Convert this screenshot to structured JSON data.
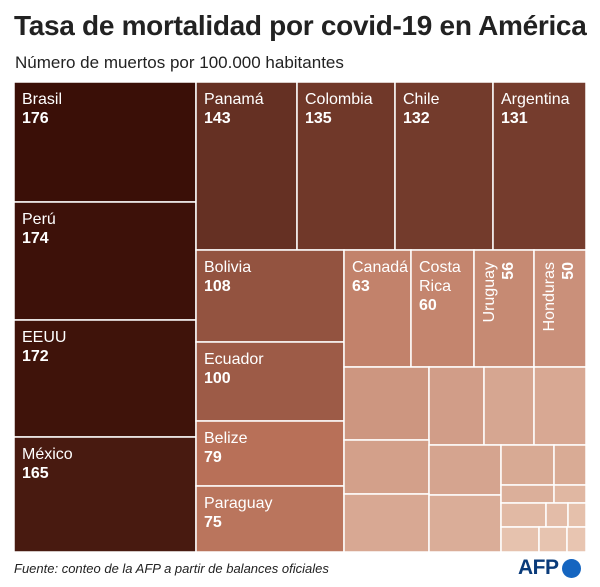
{
  "title": "Tasa de mortalidad por covid-19 en América",
  "subtitle": "Número de muertos por 100.000 habitantes",
  "source": "Fuente: conteo de la AFP a partir de balances oficiales",
  "logo": "AFP",
  "colors": {
    "darkest": "#3a0f07",
    "mid": "#b76f57",
    "light": "#e8c5b1",
    "border": "#ffffff",
    "label_light": "#ffffff"
  },
  "chart_data": {
    "type": "treemap",
    "title": "Tasa de mortalidad por covid-19 en América",
    "unit": "Número de muertos por 100.000 habitantes",
    "items": [
      {
        "name": "Brasil",
        "value": 176,
        "labeled": true
      },
      {
        "name": "Perú",
        "value": 174,
        "labeled": true
      },
      {
        "name": "EEUU",
        "value": 172,
        "labeled": true
      },
      {
        "name": "México",
        "value": 165,
        "labeled": true
      },
      {
        "name": "Panamá",
        "value": 143,
        "labeled": true
      },
      {
        "name": "Colombia",
        "value": 135,
        "labeled": true
      },
      {
        "name": "Chile",
        "value": 132,
        "labeled": true
      },
      {
        "name": "Argentina",
        "value": 131,
        "labeled": true
      },
      {
        "name": "Bolivia",
        "value": 108,
        "labeled": true
      },
      {
        "name": "Ecuador",
        "value": 100,
        "labeled": true
      },
      {
        "name": "Belize",
        "value": 79,
        "labeled": true
      },
      {
        "name": "Paraguay",
        "value": 75,
        "labeled": true
      },
      {
        "name": "Canadá",
        "value": 63,
        "labeled": true
      },
      {
        "name": "Costa Rica",
        "value": 60,
        "labeled": true
      },
      {
        "name": "Uruguay",
        "value": 56,
        "labeled": true
      },
      {
        "name": "Honduras",
        "value": 50,
        "labeled": true
      },
      {
        "name": "",
        "value": 45,
        "labeled": false
      },
      {
        "name": "",
        "value": 38,
        "labeled": false
      },
      {
        "name": "",
        "value": 30,
        "labeled": false
      },
      {
        "name": "",
        "value": 28,
        "labeled": false
      },
      {
        "name": "",
        "value": 36,
        "labeled": false
      },
      {
        "name": "",
        "value": 32,
        "labeled": false
      },
      {
        "name": "",
        "value": 27,
        "labeled": false
      },
      {
        "name": "",
        "value": 26,
        "labeled": false
      },
      {
        "name": "",
        "value": 28,
        "labeled": false
      },
      {
        "name": "",
        "value": 24,
        "labeled": false
      },
      {
        "name": "",
        "value": 22,
        "labeled": false
      },
      {
        "name": "",
        "value": 15,
        "labeled": false
      },
      {
        "name": "",
        "value": 13,
        "labeled": false
      },
      {
        "name": "",
        "value": 10,
        "labeled": false
      },
      {
        "name": "",
        "value": 7,
        "labeled": false
      },
      {
        "name": "",
        "value": 5,
        "labeled": false
      },
      {
        "name": "",
        "value": 3,
        "labeled": false
      },
      {
        "name": "",
        "value": 2,
        "labeled": false
      }
    ]
  }
}
